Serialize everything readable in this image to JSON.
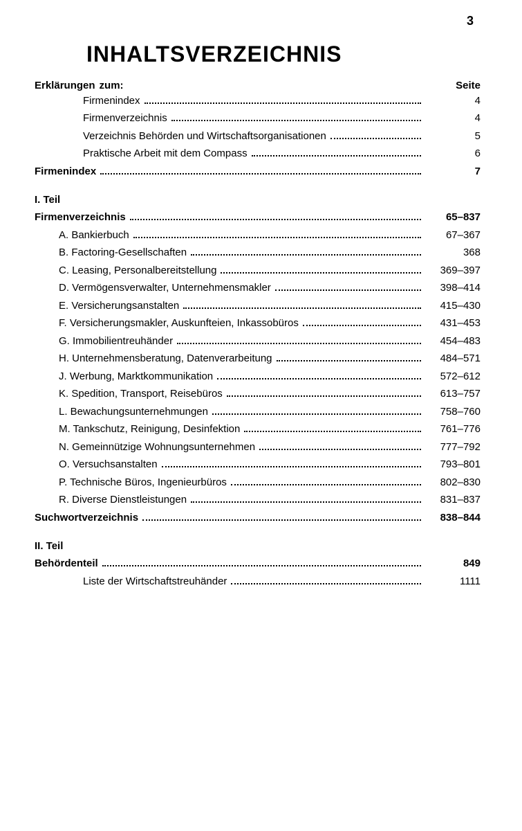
{
  "pageNumber": "3",
  "title": "INHALTSVERZEICHNIS",
  "seiteLabel": "Seite",
  "erklHeader": {
    "label": "Erklärungen",
    "suffix": "zum:"
  },
  "erklItems": [
    {
      "label": "Firmenindex",
      "page": "4"
    },
    {
      "label": "Firmenverzeichnis",
      "page": "4"
    },
    {
      "label": "Verzeichnis Behörden und Wirtschaftsorganisationen",
      "page": "5"
    },
    {
      "label": "Praktische Arbeit mit dem Compass",
      "page": "6"
    }
  ],
  "firmenindex": {
    "label": "Firmenindex",
    "page": "7"
  },
  "teil1": {
    "heading": "I. Teil",
    "main": {
      "label": "Firmenverzeichnis",
      "page": "65–837"
    },
    "items": [
      {
        "label": "A. Bankierbuch",
        "page": "67–367"
      },
      {
        "label": "B. Factoring-Gesellschaften",
        "page": "368"
      },
      {
        "label": "C. Leasing, Personalbereitstellung",
        "page": "369–397"
      },
      {
        "label": "D. Vermögensverwalter, Unternehmensmakler",
        "page": "398–414"
      },
      {
        "label": "E. Versicherungsanstalten",
        "page": "415–430"
      },
      {
        "label": "F. Versicherungsmakler, Auskunfteien, Inkassobüros",
        "page": "431–453"
      },
      {
        "label": "G. Immobilientreuhänder",
        "page": "454–483"
      },
      {
        "label": "H. Unternehmensberatung, Datenverarbeitung",
        "page": "484–571"
      },
      {
        "label": "J. Werbung, Marktkommunikation",
        "page": "572–612"
      },
      {
        "label": "K. Spedition, Transport, Reisebüros",
        "page": "613–757"
      },
      {
        "label": "L. Bewachungsunternehmungen",
        "page": "758–760"
      },
      {
        "label": "M. Tankschutz, Reinigung, Desinfektion",
        "page": "761–776"
      },
      {
        "label": "N. Gemeinnützige Wohnungsunternehmen",
        "page": "777–792"
      },
      {
        "label": "O. Versuchsanstalten",
        "page": "793–801"
      },
      {
        "label": "P. Technische Büros, Ingenieurbüros",
        "page": "802–830"
      },
      {
        "label": "R. Diverse Dienstleistungen",
        "page": "831–837"
      }
    ],
    "suchwort": {
      "label": "Suchwortverzeichnis",
      "page": "838–844"
    }
  },
  "teil2": {
    "heading": "II. Teil",
    "main": {
      "label": "Behördenteil",
      "page": "849"
    },
    "items": [
      {
        "label": "Liste der Wirtschaftstreuhänder",
        "page": "1111"
      }
    ]
  },
  "style": {
    "background": "#ffffff",
    "text": "#000000",
    "titleFontSize": 32,
    "bodyFontSize": 15,
    "fontFamily": "Arial, Helvetica, sans-serif"
  }
}
